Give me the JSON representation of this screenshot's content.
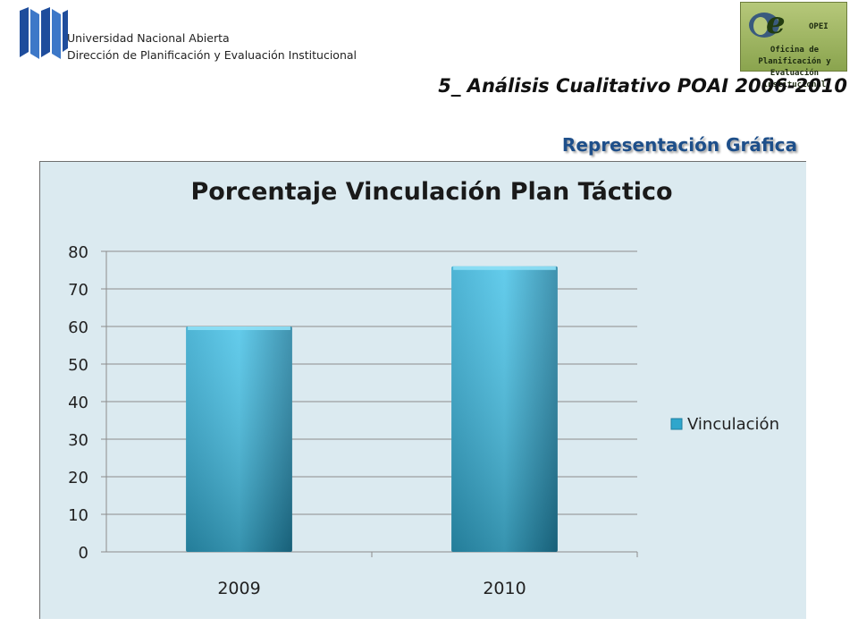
{
  "header": {
    "org_lines": [
      "Universidad Nacional Abierta",
      "Dirección de Planificación y Evaluación Institucional"
    ],
    "opei_abbr": "OPEI",
    "opei_full_lines": [
      "Oficina de Planificación y",
      "Evaluación Institucional"
    ],
    "slide_title": "5_ Análisis Cualitativo POAI 2006-2010",
    "subtitle": "Representación Gráfica"
  },
  "colors": {
    "bar": "#2fa6cc",
    "bar_light": "#48c3e8",
    "bar_dark": "#1f7fa0",
    "plot_bg": "#dbeaf0",
    "gridline": "#8c8c8c",
    "subtitle": "#1e4f8a"
  },
  "chart_data": {
    "type": "bar",
    "title": "Porcentaje Vinculación Plan Táctico",
    "categories": [
      "2009",
      "2010"
    ],
    "series": [
      {
        "name": "Vinculación",
        "values": [
          60,
          76
        ]
      }
    ],
    "ylim": [
      0,
      80
    ],
    "yticks": [
      0,
      10,
      20,
      30,
      40,
      50,
      60,
      70,
      80
    ],
    "grid": true,
    "legend": "right",
    "xlabel": "",
    "ylabel": ""
  }
}
